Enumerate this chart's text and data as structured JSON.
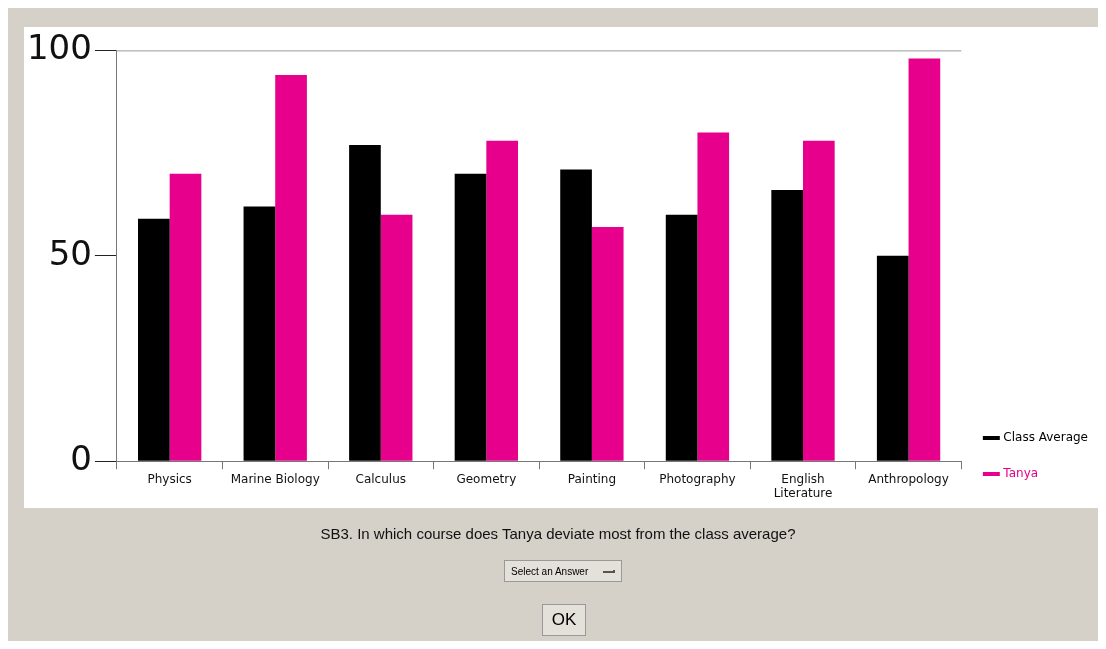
{
  "chart_data": {
    "type": "bar",
    "categories": [
      "Physics",
      "Marine Biology",
      "Calculus",
      "Geometry",
      "Painting",
      "Photography",
      "English Literature",
      "Anthropology"
    ],
    "series": [
      {
        "name": "Class Average",
        "color": "#000000",
        "values": [
          59,
          62,
          77,
          70,
          71,
          60,
          66,
          50
        ]
      },
      {
        "name": "Tanya",
        "color": "#e6008c",
        "values": [
          70,
          94,
          60,
          78,
          57,
          80,
          78,
          98
        ]
      }
    ],
    "ylim": [
      0,
      100
    ],
    "yticks": [
      0,
      50,
      100
    ],
    "grid": false,
    "legend": "bottom right",
    "annotations": [
      "SB3. In which course does Tanya deviate most from the class average?",
      "Select an Answer",
      "OK"
    ]
  }
}
